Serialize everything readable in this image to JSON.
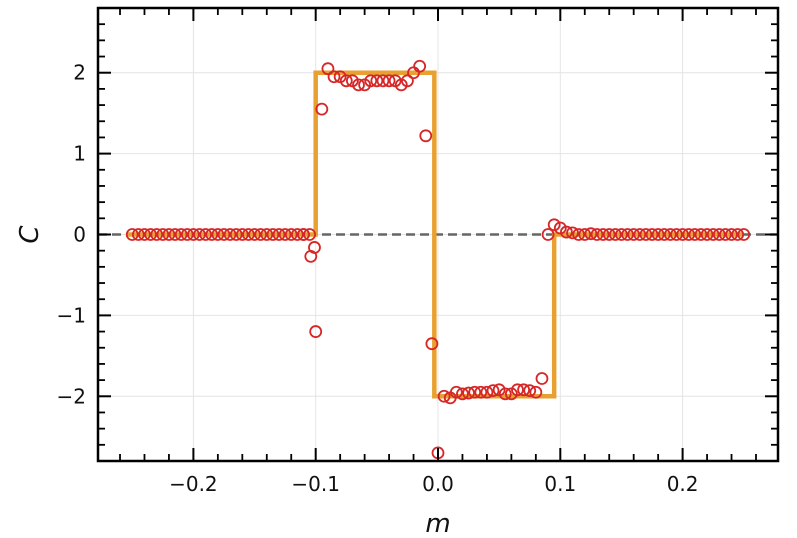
{
  "chart_data": {
    "type": "scatter",
    "xlabel": "m",
    "ylabel": "C",
    "xlim": [
      -0.278,
      0.278
    ],
    "ylim": [
      -2.8,
      2.8
    ],
    "xticks": [
      -0.2,
      -0.1,
      0.0,
      0.1,
      0.2
    ],
    "xtick_labels": [
      "−0.2",
      "−0.1",
      "0.0",
      "0.1",
      "0.2"
    ],
    "yticks": [
      -2,
      -1,
      0,
      1,
      2
    ],
    "ytick_labels": [
      "−2",
      "−1",
      "0",
      "1",
      "2"
    ],
    "grid": true,
    "colors": {
      "step": "#e8a030",
      "points": "#d62728",
      "reference": "#666666"
    },
    "reference_line": {
      "y": 0,
      "style": "dashed"
    },
    "step_line": {
      "x": [
        -0.255,
        -0.1,
        -0.1,
        -0.003,
        -0.003,
        0.095,
        0.095,
        0.25
      ],
      "y": [
        0,
        0,
        2,
        2,
        -2,
        -2,
        0,
        0
      ]
    },
    "series": [
      {
        "x": [
          -0.25,
          -0.245,
          -0.24,
          -0.235,
          -0.23,
          -0.225,
          -0.22,
          -0.215,
          -0.21,
          -0.205,
          -0.2,
          -0.195,
          -0.19,
          -0.185,
          -0.18,
          -0.175,
          -0.17,
          -0.165,
          -0.16,
          -0.155,
          -0.15,
          -0.145,
          -0.14,
          -0.135,
          -0.13,
          -0.125,
          -0.12,
          -0.115,
          -0.11,
          -0.105,
          -0.1,
          -0.095,
          -0.09,
          -0.085,
          -0.08,
          -0.075,
          -0.07,
          -0.065,
          -0.06,
          -0.055,
          -0.05,
          -0.045,
          -0.04,
          -0.035,
          -0.03,
          -0.025,
          -0.02,
          -0.015,
          -0.01,
          -0.005,
          0.0,
          0.005,
          0.01,
          0.015,
          0.02,
          0.025,
          0.03,
          0.035,
          0.04,
          0.045,
          0.05,
          0.055,
          0.06,
          0.065,
          0.07,
          0.075,
          0.08,
          0.085,
          0.09,
          0.095,
          0.1,
          0.105,
          0.11,
          0.115,
          0.12,
          0.125,
          0.13,
          0.135,
          0.14,
          0.145,
          0.15,
          0.155,
          0.16,
          0.165,
          0.17,
          0.175,
          0.18,
          0.185,
          0.19,
          0.195,
          0.2,
          0.205,
          0.21,
          0.215,
          0.22,
          0.225,
          0.23,
          0.235,
          0.24,
          0.245,
          0.25,
          -0.11,
          -0.104,
          -0.101
        ],
        "y": [
          0,
          0,
          0,
          0,
          0,
          0,
          0,
          0,
          0,
          0,
          0,
          0,
          0,
          0,
          0,
          0,
          0,
          0,
          0,
          0,
          0,
          0,
          0,
          0,
          0,
          0,
          0,
          0,
          0,
          0,
          -1.2,
          1.55,
          2.05,
          1.95,
          1.95,
          1.9,
          1.9,
          1.85,
          1.85,
          1.9,
          1.9,
          1.9,
          1.9,
          1.9,
          1.85,
          1.9,
          2.0,
          2.08,
          1.22,
          -1.35,
          -2.7,
          -2.0,
          -2.02,
          -1.95,
          -1.97,
          -1.96,
          -1.95,
          -1.95,
          -1.95,
          -1.93,
          -1.92,
          -1.97,
          -1.97,
          -1.92,
          -1.92,
          -1.93,
          -1.95,
          -1.78,
          0,
          0.12,
          0.08,
          0.03,
          0.02,
          0,
          0,
          0.01,
          0,
          0,
          0,
          0,
          0,
          0,
          0,
          0,
          0,
          0,
          0,
          0,
          0,
          0,
          0,
          0,
          0,
          0,
          0,
          0,
          0,
          0,
          0,
          0,
          0,
          0,
          -0.27,
          -0.16
        ]
      }
    ]
  }
}
